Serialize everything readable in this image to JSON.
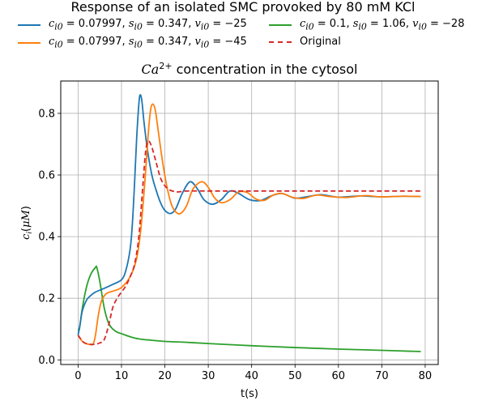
{
  "suptitle": "Response of an isolated SMC provoked by 80 mM KCl",
  "legend": [
    {
      "label": "c_i0 = 0.07997, s_i0 = 0.347, v_i0 = −25",
      "color": "#1f77b4",
      "style": "solid"
    },
    {
      "label": "c_i0 = 0.07997, s_i0 = 0.347, v_i0 = −45",
      "color": "#ff7f0e",
      "style": "solid"
    },
    {
      "label": "c_i0 = 0.1, s_i0 = 1.06, v_i0 = −28",
      "color": "#2ca02c",
      "style": "solid"
    },
    {
      "label": "Original",
      "color": "#d62728",
      "style": "dashed"
    }
  ],
  "chart_data": {
    "type": "line",
    "title": "Ca2+ concentration in the cytosol",
    "xlabel": "t(s)",
    "ylabel": "c_i(μM)",
    "xlim": [
      -4,
      83
    ],
    "ylim": [
      -0.015,
      0.905
    ],
    "xticks": [
      0,
      10,
      20,
      30,
      40,
      50,
      60,
      70,
      80
    ],
    "yticks": [
      0.0,
      0.2,
      0.4,
      0.6,
      0.8
    ],
    "xtick_labels": [
      "0",
      "10",
      "20",
      "30",
      "40",
      "50",
      "60",
      "70",
      "80"
    ],
    "ytick_labels": [
      "0.0",
      "0.2",
      "0.4",
      "0.6",
      "0.8"
    ],
    "grid": true,
    "legend_position": "above-plot",
    "series": [
      {
        "name": "c_i0=0.07997,s_i0=0.347,v_i0=-25",
        "color": "#1f77b4",
        "dash": false,
        "x": [
          0,
          0.5,
          1,
          2,
          3,
          4,
          6,
          8,
          10,
          11,
          12,
          12.5,
          13,
          13.5,
          14,
          14.3,
          14.7,
          15.2,
          16,
          17,
          18,
          19,
          20,
          21.3,
          22.5,
          24,
          25.8,
          27.5,
          29,
          31,
          33,
          35,
          37,
          39.5,
          42,
          44.5,
          47,
          50,
          53,
          56,
          60,
          65,
          70,
          75,
          79
        ],
        "y": [
          0.08,
          0.12,
          0.16,
          0.195,
          0.21,
          0.22,
          0.232,
          0.245,
          0.26,
          0.29,
          0.36,
          0.44,
          0.57,
          0.72,
          0.83,
          0.86,
          0.84,
          0.77,
          0.68,
          0.6,
          0.55,
          0.51,
          0.485,
          0.475,
          0.49,
          0.54,
          0.578,
          0.555,
          0.52,
          0.505,
          0.52,
          0.548,
          0.54,
          0.52,
          0.517,
          0.532,
          0.54,
          0.525,
          0.53,
          0.536,
          0.528,
          0.532,
          0.529,
          0.531,
          0.53
        ]
      },
      {
        "name": "c_i0=0.07997,s_i0=0.347,v_i0=-45",
        "color": "#ff7f0e",
        "dash": false,
        "x": [
          0,
          1,
          2,
          3,
          3.5,
          4,
          4.5,
          5,
          5.5,
          6.5,
          8,
          10,
          12,
          13.5,
          14.5,
          15.5,
          16.2,
          16.7,
          17.2,
          17.8,
          18.5,
          19.5,
          20.5,
          21.5,
          22.5,
          23.6,
          25,
          26.5,
          28.5,
          30,
          31.5,
          33,
          35,
          37,
          39,
          41,
          43,
          45,
          47,
          49.5,
          52,
          55,
          58,
          62,
          66,
          70,
          75,
          79
        ],
        "y": [
          0.08,
          0.06,
          0.052,
          0.05,
          0.052,
          0.08,
          0.13,
          0.17,
          0.195,
          0.215,
          0.223,
          0.235,
          0.27,
          0.33,
          0.43,
          0.6,
          0.74,
          0.81,
          0.83,
          0.81,
          0.74,
          0.64,
          0.56,
          0.505,
          0.48,
          0.475,
          0.5,
          0.555,
          0.578,
          0.56,
          0.525,
          0.51,
          0.52,
          0.545,
          0.543,
          0.522,
          0.518,
          0.535,
          0.54,
          0.527,
          0.524,
          0.535,
          0.53,
          0.527,
          0.533,
          0.529,
          0.531,
          0.53
        ]
      },
      {
        "name": "c_i0=0.1,s_i0=1.06,v_i0=-28",
        "color": "#2ca02c",
        "dash": false,
        "x": [
          0,
          0.3,
          1,
          2,
          3,
          4,
          4.3,
          5,
          6,
          7,
          8,
          9,
          10,
          12,
          14,
          16,
          20,
          25,
          30,
          40,
          50,
          60,
          70,
          79
        ],
        "y": [
          0.1,
          0.1,
          0.17,
          0.24,
          0.28,
          0.3,
          0.3,
          0.255,
          0.17,
          0.12,
          0.1,
          0.09,
          0.085,
          0.075,
          0.068,
          0.065,
          0.06,
          0.057,
          0.053,
          0.046,
          0.04,
          0.035,
          0.031,
          0.027
        ]
      },
      {
        "name": "Original",
        "color": "#d62728",
        "dash": true,
        "x": [
          0,
          1,
          2,
          3,
          4,
          5,
          6,
          7,
          8,
          9,
          10,
          11,
          12,
          13,
          14,
          15,
          15.6,
          16.2,
          17,
          18,
          19,
          20,
          21,
          22,
          23,
          25,
          30,
          40,
          50,
          60,
          70,
          79
        ],
        "y": [
          0.08,
          0.06,
          0.052,
          0.05,
          0.051,
          0.055,
          0.065,
          0.11,
          0.17,
          0.2,
          0.22,
          0.24,
          0.27,
          0.31,
          0.4,
          0.58,
          0.68,
          0.71,
          0.69,
          0.64,
          0.59,
          0.565,
          0.552,
          0.547,
          0.545,
          0.548,
          0.548,
          0.548,
          0.548,
          0.548,
          0.548,
          0.548
        ]
      }
    ]
  }
}
